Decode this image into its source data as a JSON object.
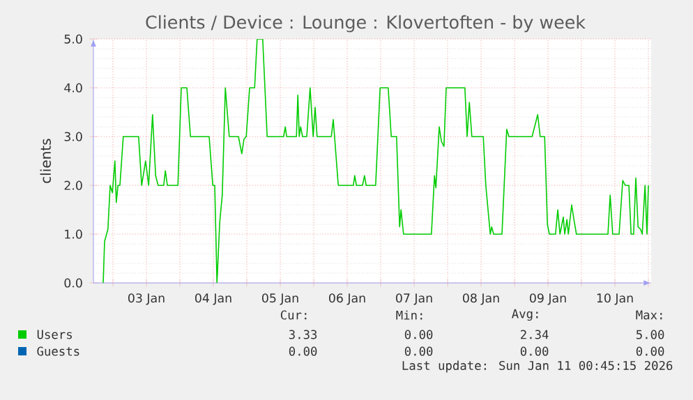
{
  "chart_data": {
    "type": "line",
    "title": "Clients / Device : Lounge  : Klovertoften - by week",
    "ylabel": "clients",
    "xlim": [
      "2026-01-02T17:00",
      "2026-01-11T01:00"
    ],
    "ylim": [
      0,
      5
    ],
    "xticks": [
      {
        "value": "2026-01-03T00:00",
        "label": null
      },
      {
        "value": "2026-01-03T12:00",
        "label": "03 Jan"
      },
      {
        "value": "2026-01-04T00:00",
        "label": null
      },
      {
        "value": "2026-01-04T12:00",
        "label": "04 Jan"
      },
      {
        "value": "2026-01-05T00:00",
        "label": null
      },
      {
        "value": "2026-01-05T12:00",
        "label": "05 Jan"
      },
      {
        "value": "2026-01-06T00:00",
        "label": null
      },
      {
        "value": "2026-01-06T12:00",
        "label": "06 Jan"
      },
      {
        "value": "2026-01-07T00:00",
        "label": null
      },
      {
        "value": "2026-01-07T12:00",
        "label": "07 Jan"
      },
      {
        "value": "2026-01-08T00:00",
        "label": null
      },
      {
        "value": "2026-01-08T12:00",
        "label": "08 Jan"
      },
      {
        "value": "2026-01-09T00:00",
        "label": null
      },
      {
        "value": "2026-01-09T12:00",
        "label": "09 Jan"
      },
      {
        "value": "2026-01-10T00:00",
        "label": null
      },
      {
        "value": "2026-01-10T12:00",
        "label": "10 Jan"
      },
      {
        "value": "2026-01-11T00:00",
        "label": null
      }
    ],
    "yticks": [
      {
        "value": 0,
        "label": "0.0"
      },
      {
        "value": 1,
        "label": "1.0"
      },
      {
        "value": 2,
        "label": "2.0"
      },
      {
        "value": 3,
        "label": "3.0"
      },
      {
        "value": 4,
        "label": "4.0"
      },
      {
        "value": 5,
        "label": "5.0"
      }
    ],
    "grid": true,
    "legend": "bottom",
    "series": [
      {
        "name": "Users",
        "color": "#00cc00",
        "x": [
          "2026-01-02T20:30",
          "2026-01-02T21:00",
          "2026-01-02T22:12",
          "2026-01-02T23:00",
          "2026-01-02T23:48",
          "2026-01-03T00:42",
          "2026-01-03T01:12",
          "2026-01-03T01:48",
          "2026-01-03T02:30",
          "2026-01-03T03:42",
          "2026-01-03T09:12",
          "2026-01-03T10:18",
          "2026-01-03T11:42",
          "2026-01-03T12:48",
          "2026-01-03T14:12",
          "2026-01-03T15:18",
          "2026-01-03T16:12",
          "2026-01-03T18:12",
          "2026-01-03T18:48",
          "2026-01-03T19:30",
          "2026-01-03T23:18",
          "2026-01-04T00:30",
          "2026-01-04T02:30",
          "2026-01-04T03:48",
          "2026-01-04T10:30",
          "2026-01-04T11:48",
          "2026-01-04T12:30",
          "2026-01-04T13:18",
          "2026-01-04T14:18",
          "2026-01-04T15:12",
          "2026-01-04T16:18",
          "2026-01-04T17:42",
          "2026-01-04T21:00",
          "2026-01-04T22:12",
          "2026-01-04T23:00",
          "2026-01-04T23:48",
          "2026-01-05T01:00",
          "2026-01-05T02:48",
          "2026-01-05T03:42",
          "2026-01-05T05:42",
          "2026-01-05T07:18",
          "2026-01-05T13:12",
          "2026-01-05T13:48",
          "2026-01-05T14:18",
          "2026-01-05T17:48",
          "2026-01-05T18:18",
          "2026-01-05T18:48",
          "2026-01-05T19:18",
          "2026-01-05T20:00",
          "2026-01-05T21:30",
          "2026-01-05T22:42",
          "2026-01-05T23:48",
          "2026-01-06T00:30",
          "2026-01-06T01:12",
          "2026-01-06T06:18",
          "2026-01-06T07:00",
          "2026-01-06T08:48",
          "2026-01-06T14:12",
          "2026-01-06T14:42",
          "2026-01-06T15:18",
          "2026-01-06T17:30",
          "2026-01-06T18:12",
          "2026-01-06T18:48",
          "2026-01-06T22:12",
          "2026-01-06T23:48",
          "2026-01-07T02:42",
          "2026-01-07T03:48",
          "2026-01-07T05:42",
          "2026-01-07T06:48",
          "2026-01-07T07:18",
          "2026-01-07T08:12",
          "2026-01-07T18:12",
          "2026-01-07T19:18",
          "2026-01-07T19:48",
          "2026-01-07T21:00",
          "2026-01-07T21:48",
          "2026-01-07T22:42",
          "2026-01-07T23:30",
          "2026-01-08T06:12",
          "2026-01-08T07:00",
          "2026-01-08T07:48",
          "2026-01-08T08:42",
          "2026-01-08T09:48",
          "2026-01-08T12:48",
          "2026-01-08T13:42",
          "2026-01-08T14:30",
          "2026-01-08T15:18",
          "2026-01-08T15:48",
          "2026-01-08T16:30",
          "2026-01-08T19:30",
          "2026-01-08T21:12",
          "2026-01-08T22:00",
          "2026-01-09T06:18",
          "2026-01-09T07:12",
          "2026-01-09T08:18",
          "2026-01-09T09:12",
          "2026-01-09T10:48",
          "2026-01-09T11:48",
          "2026-01-09T12:30",
          "2026-01-09T14:42",
          "2026-01-09T15:30",
          "2026-01-09T16:18",
          "2026-01-09T17:30",
          "2026-01-09T18:00",
          "2026-01-09T18:48",
          "2026-01-09T19:18",
          "2026-01-09T20:30",
          "2026-01-09T21:18",
          "2026-01-09T22:12",
          "2026-01-10T09:30",
          "2026-01-10T10:18",
          "2026-01-10T11:12",
          "2026-01-10T13:30",
          "2026-01-10T14:48",
          "2026-01-10T15:42",
          "2026-01-10T17:00",
          "2026-01-10T17:48",
          "2026-01-10T18:42",
          "2026-01-10T19:30",
          "2026-01-10T20:18",
          "2026-01-10T21:12",
          "2026-01-10T21:48",
          "2026-01-10T22:48",
          "2026-01-10T23:30",
          "2026-01-11T00:00"
        ],
        "values": [
          0,
          0.85,
          1.1,
          2.0,
          1.85,
          2.5,
          1.65,
          2.0,
          2.0,
          3.0,
          3.0,
          2.0,
          2.5,
          2.0,
          3.45,
          2.2,
          2.0,
          2.0,
          2.3,
          2.0,
          2.0,
          4.0,
          4.0,
          3.0,
          3.0,
          2.0,
          2.0,
          0,
          1.25,
          1.8,
          4.0,
          3.0,
          3.0,
          2.65,
          2.95,
          3.0,
          4.0,
          4.0,
          5.0,
          5.0,
          3.0,
          3.0,
          3.2,
          3.0,
          3.0,
          3.85,
          3.0,
          3.2,
          3.0,
          3.0,
          4.0,
          3.0,
          3.6,
          3.0,
          3.0,
          3.35,
          2.0,
          2.0,
          2.2,
          2.0,
          2.0,
          2.2,
          2.0,
          2.0,
          4.0,
          4.0,
          3.0,
          3.0,
          1.15,
          1.5,
          1.0,
          1.0,
          2.2,
          1.95,
          3.2,
          2.9,
          2.8,
          4.0,
          4.0,
          3.0,
          3.7,
          3.0,
          3.0,
          3.0,
          2.0,
          1.5,
          1.0,
          1.15,
          1.0,
          1.0,
          3.15,
          3.0,
          3.0,
          3.2,
          3.45,
          3.0,
          3.0,
          1.2,
          1.0,
          1.0,
          1.5,
          1.0,
          1.35,
          1.0,
          1.3,
          1.0,
          1.6,
          1.3,
          1.0,
          1.0,
          1.8,
          1.0,
          1.0,
          2.1,
          2.0,
          2.0,
          1.0,
          1.0,
          2.15,
          1.15,
          1.1,
          1.0,
          2.0,
          1.0,
          2.0
        ]
      },
      {
        "name": "Guests",
        "color": "#0066b3"
      }
    ],
    "annotations": [
      "Cur:",
      "Min:",
      "Avg:",
      "Max:",
      "3.33",
      "0.00",
      "2.34",
      "5.00",
      "0.00",
      "0.00",
      "0.00",
      "0.00",
      "Last update: Sun Jan 11 00:45:15 2026"
    ]
  }
}
